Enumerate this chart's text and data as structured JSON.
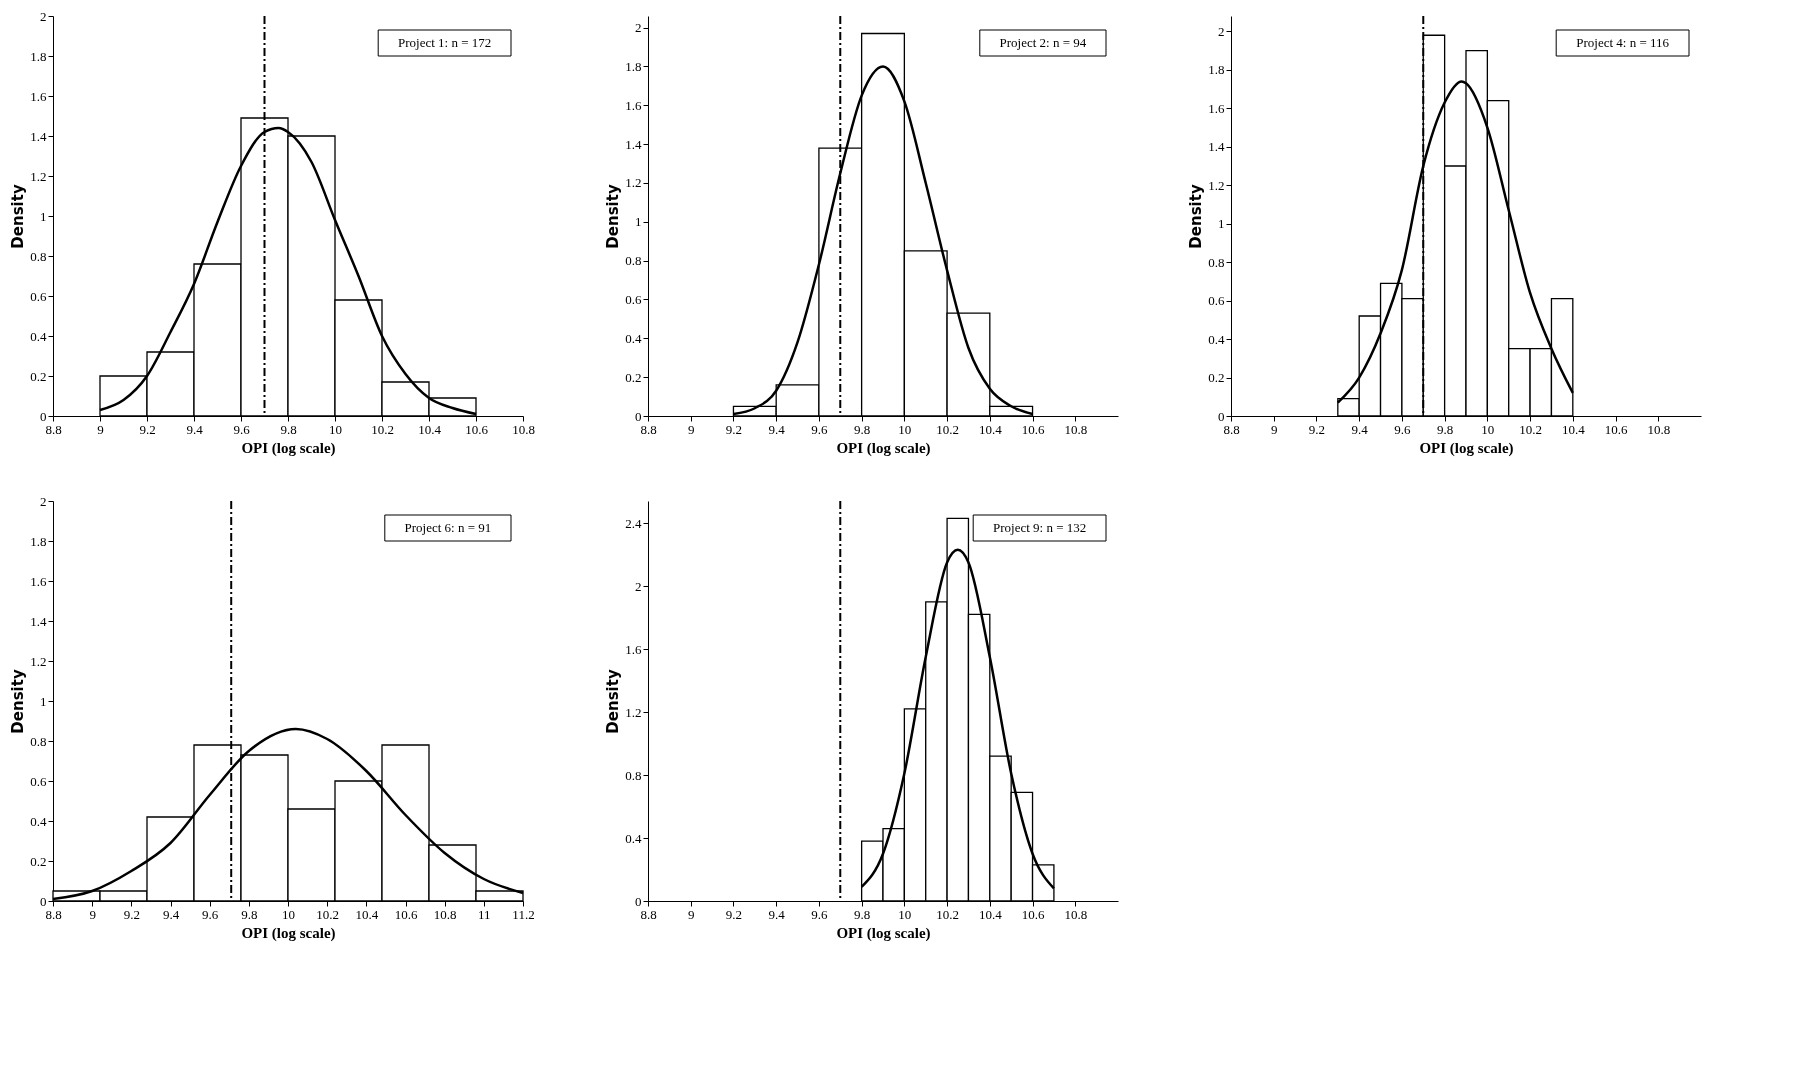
{
  "chart_data": [
    {
      "type": "histogram",
      "xlabel": "OPI (log scale)",
      "ylabel": "Density",
      "annotations": [
        "Project 1: n = 172"
      ],
      "bins": [
        9,
        9.2,
        9.4,
        9.6,
        9.8,
        10,
        10.2,
        10.4,
        10.6
      ],
      "values": [
        0.2,
        0.32,
        0.76,
        1.49,
        1.4,
        0.58,
        0.17,
        0.09
      ],
      "series": [
        {
          "type": "line",
          "color": "#000000",
          "x": [
            9.0,
            9.1,
            9.2,
            9.3,
            9.4,
            9.5,
            9.6,
            9.7,
            9.76,
            9.8,
            9.9,
            10.0,
            10.1,
            10.2,
            10.3,
            10.4,
            10.5,
            10.6
          ],
          "values": [
            0.03,
            0.08,
            0.2,
            0.42,
            0.66,
            0.97,
            1.25,
            1.42,
            1.44,
            1.42,
            1.27,
            0.98,
            0.7,
            0.4,
            0.21,
            0.09,
            0.04,
            0.01
          ]
        }
      ],
      "ref_lines": [
        {
          "axis": "x",
          "value": 9.7,
          "line_style": "dashed"
        }
      ],
      "xlim": [
        8.8,
        10.8
      ],
      "ylim": [
        0,
        2
      ],
      "xticks": [
        8.8,
        9,
        9.2,
        9.4,
        9.6,
        9.8,
        10,
        10.2,
        10.4,
        10.6,
        10.8
      ],
      "yticks": [
        0,
        0.2,
        0.4,
        0.6,
        0.8,
        1,
        1.2,
        1.4,
        1.6,
        1.8,
        2
      ]
    },
    {
      "type": "histogram",
      "xlabel": "OPI (log scale)",
      "ylabel": "Density",
      "annotations": [
        "Project 2: n = 94"
      ],
      "bins": [
        9.2,
        9.4,
        9.6,
        9.8,
        10,
        10.2,
        10.4,
        10.6
      ],
      "values": [
        0.05,
        0.16,
        1.38,
        1.97,
        0.85,
        0.53,
        0.05
      ],
      "series": [
        {
          "type": "line",
          "color": "#000000",
          "x": [
            9.2,
            9.3,
            9.4,
            9.5,
            9.6,
            9.7,
            9.8,
            9.9,
            10.0,
            10.1,
            10.2,
            10.3,
            10.4,
            10.5,
            10.6
          ],
          "values": [
            0.01,
            0.04,
            0.13,
            0.38,
            0.78,
            1.25,
            1.65,
            1.8,
            1.62,
            1.2,
            0.75,
            0.35,
            0.14,
            0.05,
            0.01
          ]
        }
      ],
      "ref_lines": [
        {
          "axis": "x",
          "value": 9.7,
          "line_style": "dashed"
        }
      ],
      "xlim": [
        8.8,
        11.0
      ],
      "ylim": [
        0,
        2.06
      ],
      "xticks": [
        8.8,
        9,
        9.2,
        9.4,
        9.6,
        9.8,
        10,
        10.2,
        10.4,
        10.6,
        10.8
      ],
      "yticks": [
        0,
        0.2,
        0.4,
        0.6,
        0.8,
        1,
        1.2,
        1.4,
        1.6,
        1.8,
        2
      ]
    },
    {
      "type": "histogram",
      "xlabel": "OPI (log scale)",
      "ylabel": "Density",
      "annotations": [
        "Project 4: n = 116"
      ],
      "bins": [
        9.3,
        9.4,
        9.5,
        9.6,
        9.7,
        9.8,
        9.9,
        10,
        10.1,
        10.2,
        10.3,
        10.4
      ],
      "values": [
        0.09,
        0.52,
        0.69,
        0.61,
        1.98,
        1.3,
        1.9,
        1.64,
        0.35,
        0.35,
        0.61
      ],
      "series": [
        {
          "type": "line",
          "color": "#000000",
          "x": [
            9.3,
            9.4,
            9.5,
            9.6,
            9.7,
            9.8,
            9.88,
            9.9,
            10.0,
            10.1,
            10.2,
            10.3,
            10.4
          ],
          "values": [
            0.07,
            0.2,
            0.43,
            0.76,
            1.3,
            1.63,
            1.74,
            1.73,
            1.5,
            1.07,
            0.64,
            0.35,
            0.12
          ]
        }
      ],
      "ref_lines": [
        {
          "axis": "x",
          "value": 9.7,
          "line_style": "dashed"
        }
      ],
      "xlim": [
        8.8,
        11.0
      ],
      "ylim": [
        0,
        2.08
      ],
      "xticks": [
        8.8,
        9,
        9.2,
        9.4,
        9.6,
        9.8,
        10,
        10.2,
        10.4,
        10.6,
        10.8
      ],
      "yticks": [
        0,
        0.2,
        0.4,
        0.6,
        0.8,
        1,
        1.2,
        1.4,
        1.6,
        1.8,
        2
      ]
    },
    {
      "type": "histogram",
      "xlabel": "OPI (log scale)",
      "ylabel": "Density",
      "annotations": [
        "Project 6: n = 91"
      ],
      "bins": [
        8.8,
        9.04,
        9.28,
        9.52,
        9.76,
        10.0,
        10.24,
        10.48,
        10.72,
        10.96,
        11.2
      ],
      "values": [
        0.05,
        0.05,
        0.42,
        0.78,
        0.73,
        0.46,
        0.6,
        0.78,
        0.28,
        0.05
      ],
      "series": [
        {
          "type": "line",
          "color": "#000000",
          "x": [
            8.8,
            9.0,
            9.2,
            9.4,
            9.6,
            9.8,
            10.04,
            10.2,
            10.4,
            10.6,
            10.8,
            11.0,
            11.2
          ],
          "values": [
            0.01,
            0.05,
            0.15,
            0.29,
            0.53,
            0.75,
            0.86,
            0.81,
            0.65,
            0.43,
            0.24,
            0.11,
            0.04
          ]
        }
      ],
      "ref_lines": [
        {
          "axis": "x",
          "value": 9.71,
          "line_style": "dashed"
        }
      ],
      "xlim": [
        8.8,
        11.2
      ],
      "ylim": [
        0,
        2
      ],
      "xticks": [
        8.8,
        9,
        9.2,
        9.4,
        9.6,
        9.8,
        10,
        10.2,
        10.4,
        10.6,
        10.8,
        11,
        11.2
      ],
      "yticks": [
        0,
        0.2,
        0.4,
        0.6,
        0.8,
        1,
        1.2,
        1.4,
        1.6,
        1.8,
        2
      ]
    },
    {
      "type": "histogram",
      "xlabel": "OPI (log scale)",
      "ylabel": "Density",
      "annotations": [
        "Project 9: n = 132"
      ],
      "bins": [
        9.8,
        9.9,
        10,
        10.1,
        10.2,
        10.3,
        10.4,
        10.5,
        10.6,
        10.7
      ],
      "values": [
        0.38,
        0.46,
        1.22,
        1.9,
        2.43,
        1.82,
        0.92,
        0.69,
        0.23
      ],
      "series": [
        {
          "type": "line",
          "color": "#000000",
          "x": [
            9.8,
            9.9,
            10.0,
            10.1,
            10.2,
            10.25,
            10.3,
            10.4,
            10.5,
            10.6,
            10.7
          ],
          "values": [
            0.09,
            0.3,
            0.81,
            1.55,
            2.15,
            2.23,
            2.15,
            1.55,
            0.81,
            0.3,
            0.08
          ]
        }
      ],
      "ref_lines": [
        {
          "axis": "x",
          "value": 9.7,
          "line_style": "dashed"
        }
      ],
      "xlim": [
        8.8,
        11.0
      ],
      "ylim": [
        0,
        2.54
      ],
      "xticks": [
        8.8,
        9,
        9.2,
        9.4,
        9.6,
        9.8,
        10,
        10.2,
        10.4,
        10.6,
        10.8
      ],
      "yticks": [
        0,
        0.4,
        0.8,
        1.2,
        1.6,
        2,
        2.4
      ]
    }
  ]
}
